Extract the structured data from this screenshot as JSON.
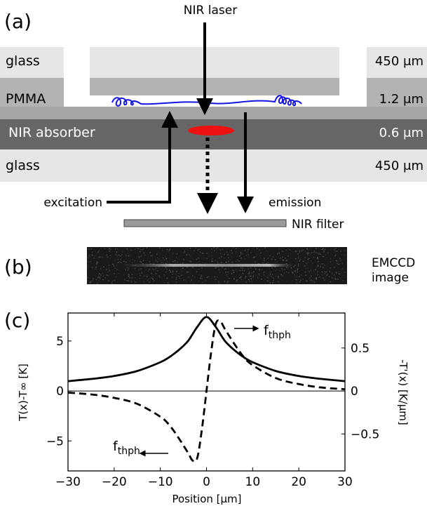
{
  "panel_labels": {
    "a": "(a)",
    "b": "(b)",
    "c": "(c)"
  },
  "schematic": {
    "layers": [
      {
        "name": "glass",
        "thickness": "450 μm",
        "color": "#e6e6e6"
      },
      {
        "name": "PMMA",
        "thickness": "1.2 μm",
        "color": "#b3b3b3"
      },
      {
        "name": "NIR absorber",
        "thickness": "0.6 μm",
        "color": "#666666"
      },
      {
        "name": "glass",
        "thickness": "450 μm",
        "color": "#e6e6e6"
      }
    ],
    "labels": {
      "laser": "NIR laser",
      "excitation": "excitation",
      "emission": "emission",
      "filter": "NIR filter"
    },
    "colors": {
      "polymer_chain": "#1515e0",
      "laser_spot": "#ee1111",
      "filter": "#9a9a9a"
    }
  },
  "emccd": {
    "label_line1": "EMCCD",
    "label_line2": "image"
  },
  "chart_data": {
    "type": "line",
    "xlabel": "Position [μm]",
    "ylabel_left": "T(x)-T∞ [K]",
    "ylabel_right": "-T'(x) [K/μm]",
    "xlim": [
      -30,
      30
    ],
    "ylim_left": [
      -8,
      7.8
    ],
    "ylim_right": [
      -0.93,
      0.907
    ],
    "xticks": [
      -30,
      -20,
      -10,
      0,
      10,
      20,
      30
    ],
    "yticks_left": [
      -5,
      0,
      5
    ],
    "yticks_right": [
      -0.5,
      0,
      0.5
    ],
    "yticks_right_labels": [
      "−0.5",
      "0",
      "0.5"
    ],
    "grid": false,
    "annotations": [
      {
        "text": "f",
        "sub": "thph"
      },
      {
        "text": "f",
        "sub": "thph"
      }
    ],
    "series": [
      {
        "axis": "left",
        "style": "solid",
        "x": [
          -30,
          -25,
          -20,
          -15,
          -10,
          -8,
          -6,
          -4,
          -2,
          0,
          2,
          4,
          6,
          8,
          10,
          15,
          20,
          25,
          30
        ],
        "y": [
          0.98,
          1.2,
          1.5,
          2.0,
          2.88,
          3.4,
          4.1,
          5.0,
          6.4,
          7.4,
          6.4,
          5.0,
          4.1,
          3.4,
          2.88,
          2.0,
          1.5,
          1.2,
          0.98
        ]
      },
      {
        "axis": "right",
        "style": "dashed",
        "x": [
          -30,
          -25,
          -20,
          -15,
          -10,
          -8,
          -6,
          -4,
          -3,
          -2,
          -1,
          0,
          1,
          2,
          3,
          4,
          6,
          8,
          10,
          15,
          20,
          25,
          30
        ],
        "y": [
          -0.02,
          -0.04,
          -0.08,
          -0.15,
          -0.3,
          -0.4,
          -0.55,
          -0.72,
          -0.81,
          -0.78,
          -0.45,
          0.0,
          0.45,
          0.78,
          0.81,
          0.72,
          0.55,
          0.4,
          0.3,
          0.15,
          0.08,
          0.04,
          0.02
        ]
      }
    ]
  }
}
